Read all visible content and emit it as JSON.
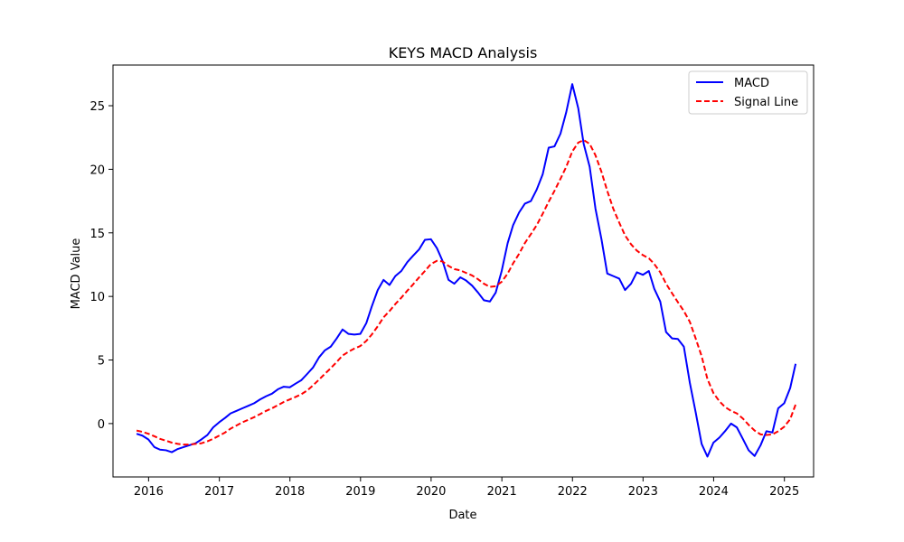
{
  "chart_data": {
    "type": "line",
    "title": "KEYS MACD Analysis",
    "xlabel": "Date",
    "ylabel": "MACD Value",
    "x_ticks": [
      "2016",
      "2017",
      "2018",
      "2019",
      "2020",
      "2021",
      "2022",
      "2023",
      "2024",
      "2025"
    ],
    "y_ticks": [
      0,
      5,
      10,
      15,
      20,
      25
    ],
    "xlim": [
      "2015-07-01",
      "2025-06-01"
    ],
    "ylim": [
      -4.2,
      28.2
    ],
    "legend_position": "top-right",
    "grid": false,
    "dates": [
      "2015-10-31",
      "2015-11-30",
      "2015-12-31",
      "2016-01-31",
      "2016-02-29",
      "2016-03-31",
      "2016-04-30",
      "2016-05-31",
      "2016-06-30",
      "2016-07-31",
      "2016-08-31",
      "2016-09-30",
      "2016-10-31",
      "2016-11-30",
      "2016-12-31",
      "2017-01-31",
      "2017-02-28",
      "2017-03-31",
      "2017-04-30",
      "2017-05-31",
      "2017-06-30",
      "2017-07-31",
      "2017-08-31",
      "2017-09-30",
      "2017-10-31",
      "2017-11-30",
      "2017-12-31",
      "2018-01-31",
      "2018-02-28",
      "2018-03-31",
      "2018-04-30",
      "2018-05-31",
      "2018-06-30",
      "2018-07-31",
      "2018-08-31",
      "2018-09-30",
      "2018-10-31",
      "2018-11-30",
      "2018-12-31",
      "2019-01-31",
      "2019-02-28",
      "2019-03-31",
      "2019-04-30",
      "2019-05-31",
      "2019-06-30",
      "2019-07-31",
      "2019-08-31",
      "2019-09-30",
      "2019-10-31",
      "2019-11-30",
      "2019-12-31",
      "2020-01-31",
      "2020-02-29",
      "2020-03-31",
      "2020-04-30",
      "2020-05-31",
      "2020-06-30",
      "2020-07-31",
      "2020-08-31",
      "2020-09-30",
      "2020-10-31",
      "2020-11-30",
      "2020-12-31",
      "2021-01-31",
      "2021-02-28",
      "2021-03-31",
      "2021-04-30",
      "2021-05-31",
      "2021-06-30",
      "2021-07-31",
      "2021-08-31",
      "2021-09-30",
      "2021-10-31",
      "2021-11-30",
      "2021-12-31",
      "2022-01-31",
      "2022-02-28",
      "2022-03-31",
      "2022-04-30",
      "2022-05-31",
      "2022-06-30",
      "2022-07-31",
      "2022-08-31",
      "2022-09-30",
      "2022-10-31",
      "2022-11-30",
      "2022-12-31",
      "2023-01-31",
      "2023-02-28",
      "2023-03-31",
      "2023-04-30",
      "2023-05-31",
      "2023-06-30",
      "2023-07-31",
      "2023-08-31",
      "2023-09-30",
      "2023-10-31",
      "2023-11-30",
      "2023-12-31",
      "2024-01-31",
      "2024-02-29",
      "2024-03-31",
      "2024-04-30",
      "2024-05-31",
      "2024-06-30",
      "2024-07-31",
      "2024-08-31",
      "2024-09-30",
      "2024-10-31",
      "2024-11-30",
      "2024-12-31",
      "2025-01-31",
      "2025-02-28"
    ],
    "series": [
      {
        "name": "MACD",
        "color": "#0000ff",
        "style": "solid",
        "values": [
          -0.8,
          -0.95,
          -1.25,
          -1.85,
          -2.05,
          -2.1,
          -2.25,
          -2.0,
          -1.85,
          -1.7,
          -1.55,
          -1.25,
          -0.9,
          -0.3,
          0.1,
          0.45,
          0.8,
          1.0,
          1.2,
          1.4,
          1.6,
          1.9,
          2.15,
          2.35,
          2.7,
          2.9,
          2.85,
          3.15,
          3.4,
          3.9,
          4.4,
          5.2,
          5.75,
          6.05,
          6.7,
          7.4,
          7.05,
          7.0,
          7.05,
          7.9,
          9.2,
          10.5,
          11.3,
          10.9,
          11.6,
          12.0,
          12.7,
          13.2,
          13.7,
          14.45,
          14.5,
          13.8,
          12.8,
          11.3,
          11.0,
          11.5,
          11.25,
          10.85,
          10.3,
          9.7,
          9.6,
          10.3,
          12.0,
          14.2,
          15.6,
          16.6,
          17.3,
          17.5,
          18.4,
          19.6,
          21.7,
          21.8,
          22.8,
          24.5,
          26.7,
          24.8,
          22.0,
          20.2,
          16.9,
          14.5,
          11.8,
          11.6,
          11.4,
          10.5,
          11.0,
          11.9,
          11.7,
          12.0,
          10.6,
          9.6,
          7.2,
          6.7,
          6.65,
          6.05,
          3.2,
          0.9,
          -1.6,
          -2.6,
          -1.5,
          -1.1,
          -0.6,
          0.0,
          -0.3,
          -1.2,
          -2.1,
          -2.55,
          -1.7,
          -0.6,
          -0.7,
          1.2,
          1.6,
          2.8,
          4.7
        ]
      },
      {
        "name": "Signal Line",
        "color": "#ff0000",
        "style": "dashed",
        "values": [
          -0.55,
          -0.65,
          -0.8,
          -1.0,
          -1.2,
          -1.35,
          -1.5,
          -1.6,
          -1.65,
          -1.65,
          -1.6,
          -1.55,
          -1.4,
          -1.2,
          -0.95,
          -0.7,
          -0.4,
          -0.15,
          0.1,
          0.3,
          0.5,
          0.75,
          1.0,
          1.2,
          1.45,
          1.7,
          1.9,
          2.1,
          2.3,
          2.6,
          3.0,
          3.45,
          3.9,
          4.35,
          4.85,
          5.35,
          5.65,
          5.9,
          6.1,
          6.5,
          7.0,
          7.65,
          8.35,
          8.85,
          9.4,
          9.9,
          10.45,
          10.95,
          11.5,
          12.0,
          12.55,
          12.8,
          12.75,
          12.4,
          12.15,
          12.05,
          11.85,
          11.65,
          11.35,
          11.0,
          10.75,
          10.8,
          11.15,
          11.8,
          12.6,
          13.35,
          14.2,
          14.9,
          15.6,
          16.5,
          17.45,
          18.3,
          19.25,
          20.2,
          21.4,
          22.1,
          22.3,
          22.0,
          21.1,
          19.8,
          18.3,
          16.9,
          15.8,
          14.8,
          14.1,
          13.6,
          13.25,
          13.0,
          12.55,
          11.9,
          11.0,
          10.25,
          9.55,
          8.85,
          8.0,
          6.7,
          5.3,
          3.5,
          2.4,
          1.75,
          1.3,
          1.0,
          0.8,
          0.4,
          -0.1,
          -0.55,
          -0.85,
          -0.9,
          -0.85,
          -0.6,
          -0.25,
          0.35,
          1.5
        ]
      }
    ]
  }
}
